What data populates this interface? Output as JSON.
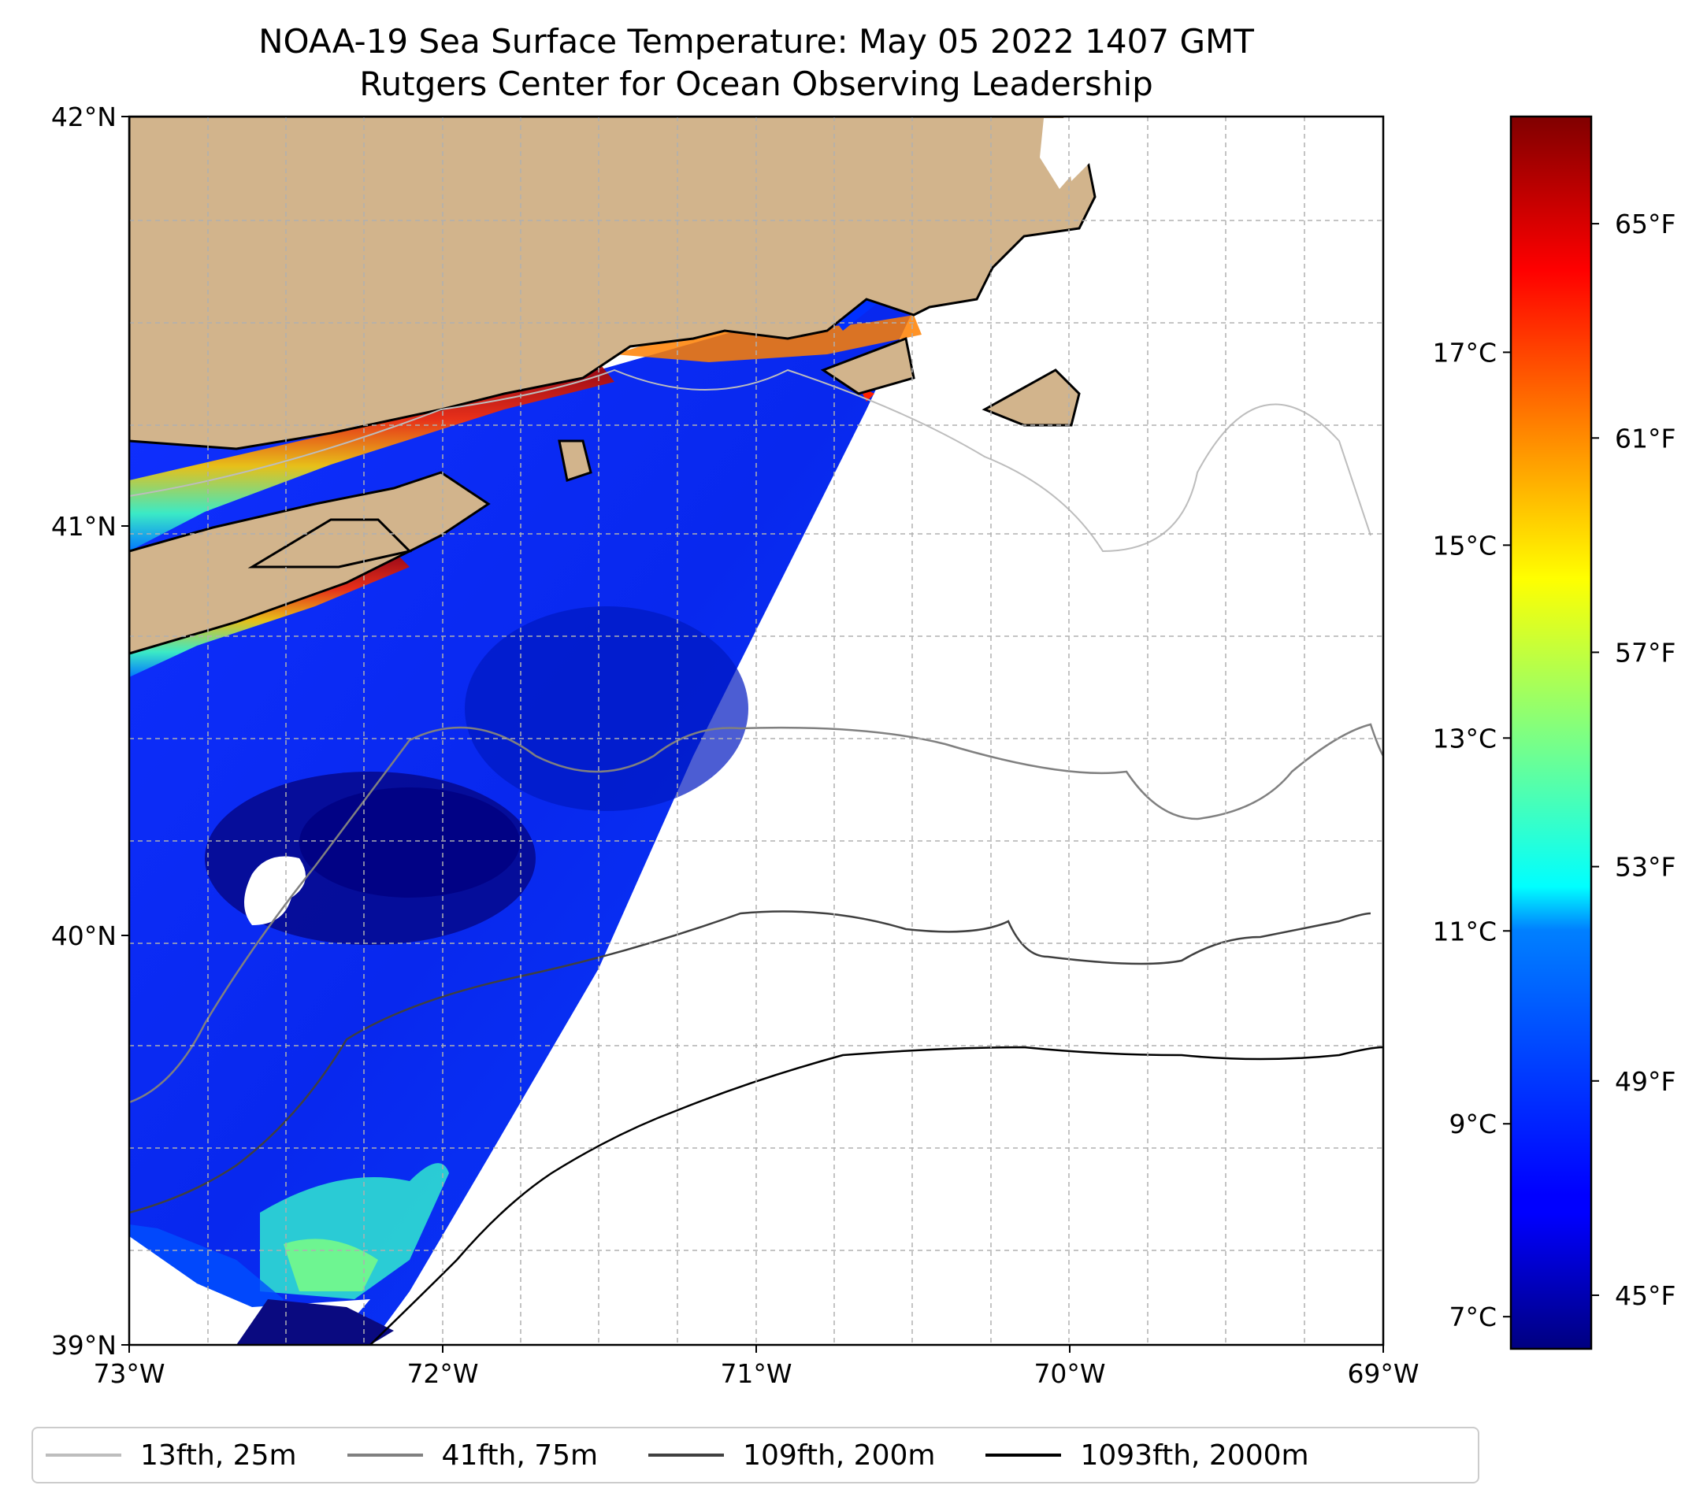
{
  "title": {
    "line1": "NOAA-19 Sea Surface Temperature: May 05 2022 1407 GMT",
    "line2": "Rutgers Center for Ocean Observing Leadership"
  },
  "map": {
    "lon_range": [
      -73,
      -69
    ],
    "lat_range": [
      39,
      42
    ],
    "x_ticks": [
      {
        "value": -73,
        "label": "73°W"
      },
      {
        "value": -72,
        "label": "72°W"
      },
      {
        "value": -71,
        "label": "71°W"
      },
      {
        "value": -70,
        "label": "70°W"
      },
      {
        "value": -69,
        "label": "69°W"
      }
    ],
    "y_ticks": [
      {
        "value": 42,
        "label": "42°N"
      },
      {
        "value": 41,
        "label": "41°N"
      },
      {
        "value": 40,
        "label": "40°N"
      },
      {
        "value": 39,
        "label": "39°N"
      }
    ],
    "grid": "dashed",
    "land_color": "#d2b48c",
    "ocean_color": "#ffffff"
  },
  "colorbar": {
    "colormap": "jet",
    "celsius_ticks": [
      {
        "value": 7,
        "label": "7°C"
      },
      {
        "value": 9,
        "label": "9°C"
      },
      {
        "value": 11,
        "label": "11°C"
      },
      {
        "value": 13,
        "label": "13°C"
      },
      {
        "value": 15,
        "label": "15°C"
      },
      {
        "value": 17,
        "label": "17°C"
      }
    ],
    "fahrenheit_ticks": [
      {
        "value": 45,
        "label": "45°F"
      },
      {
        "value": 49,
        "label": "49°F"
      },
      {
        "value": 53,
        "label": "53°F"
      },
      {
        "value": 57,
        "label": "57°F"
      },
      {
        "value": 61,
        "label": "61°F"
      },
      {
        "value": 65,
        "label": "65°F"
      }
    ],
    "range_f": [
      44,
      67
    ]
  },
  "legend": {
    "items": [
      {
        "label": "13fth, 25m",
        "color": "#bdbdbd"
      },
      {
        "label": "41fth, 75m",
        "color": "#808080"
      },
      {
        "label": "109fth, 200m",
        "color": "#404040"
      },
      {
        "label": "1093fth, 2000m",
        "color": "#000000"
      }
    ]
  }
}
